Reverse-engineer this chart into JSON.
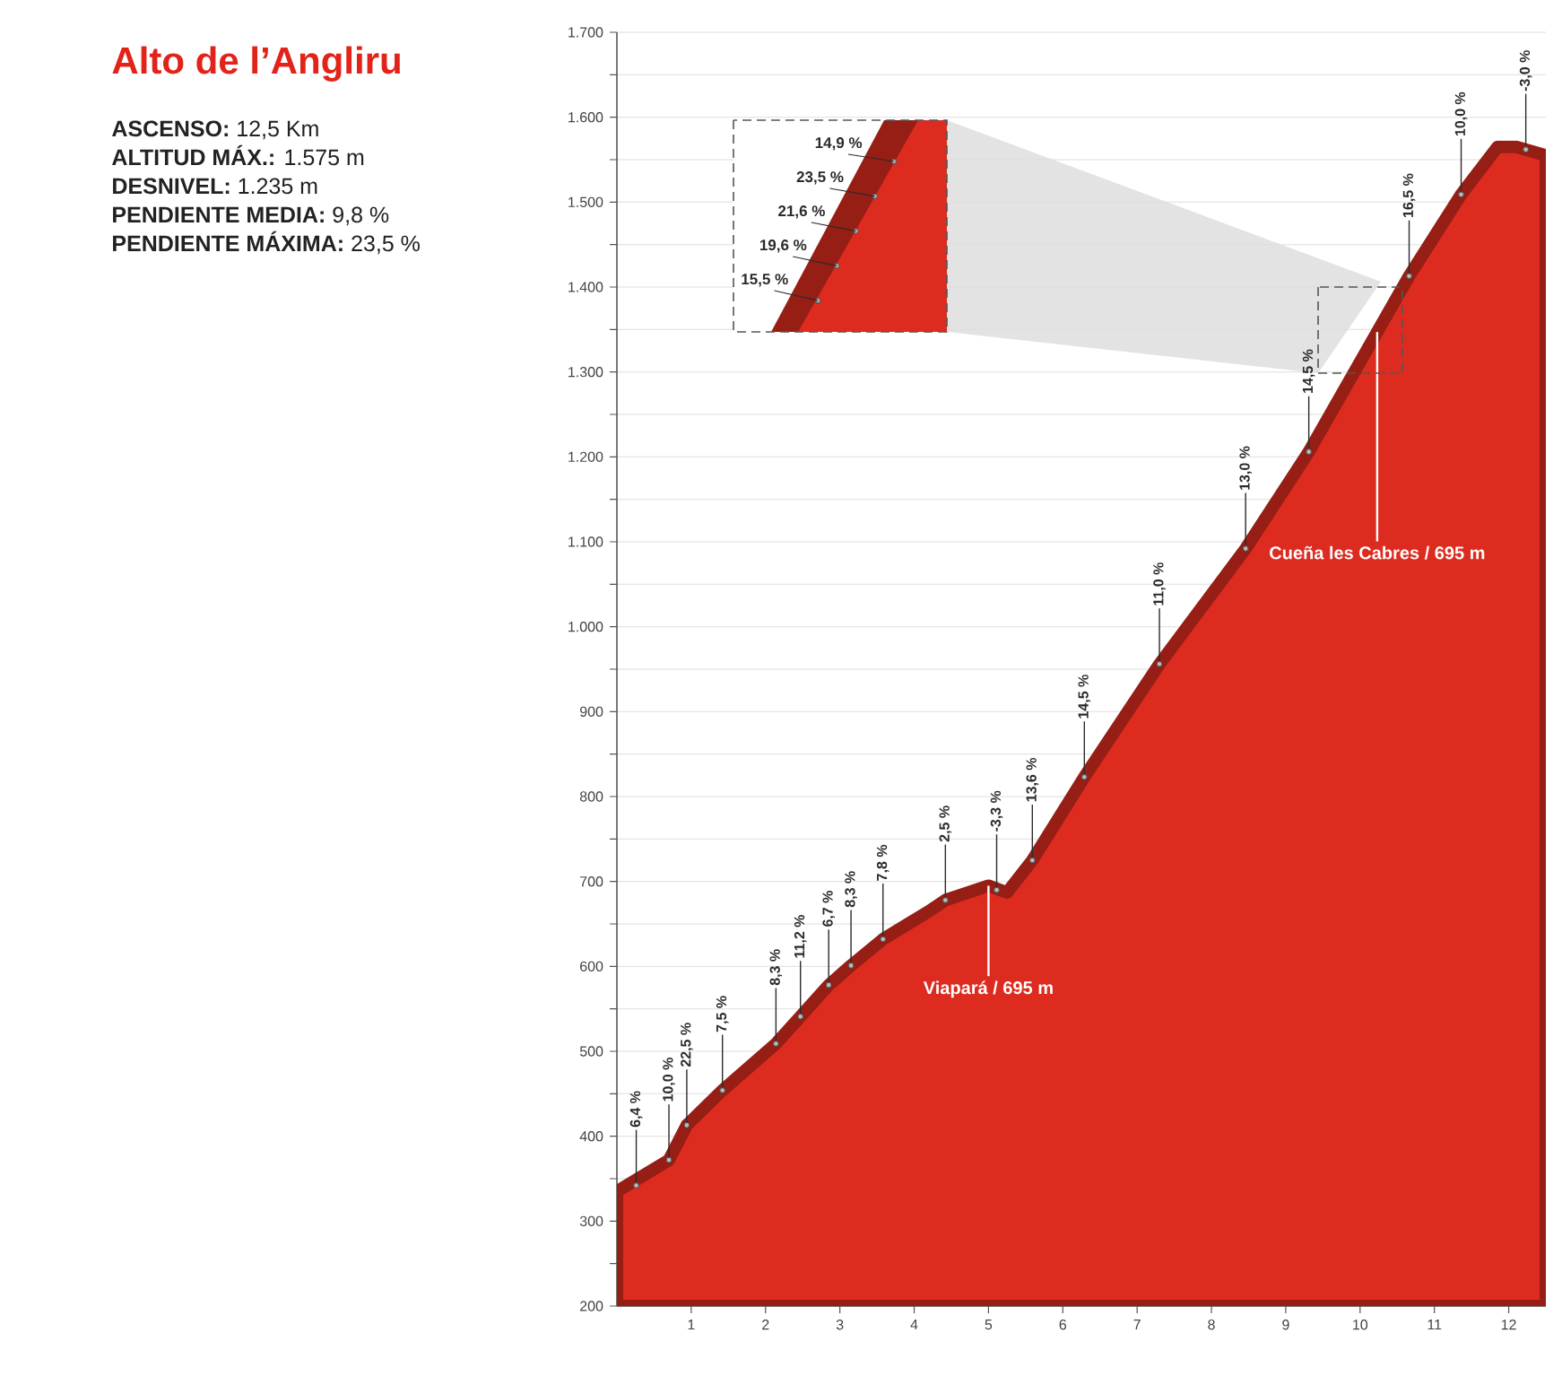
{
  "chart_data": {
    "type": "area",
    "title": "Alto de l’Angliru",
    "x": [
      0,
      0.7,
      0.94,
      1.42,
      2.14,
      2.47,
      2.85,
      3.15,
      3.58,
      4.2,
      4.42,
      5.0,
      5.25,
      5.59,
      6.29,
      7.3,
      8.46,
      9.31,
      10.66,
      11.36,
      11.85,
      12.1,
      12.5
    ],
    "series": [
      {
        "color": "#dd2c1f",
        "values": [
          335,
          372,
          413,
          454,
          509,
          541,
          578,
          601,
          632,
          665,
          678,
          695,
          687,
          725,
          823,
          956,
          1092,
          1206,
          1413,
          1509,
          1565,
          1565,
          1555
        ]
      }
    ],
    "xlim": [
      0,
      12.5
    ],
    "xticks": [
      1,
      2,
      3,
      4,
      5,
      6,
      7,
      8,
      9,
      10,
      11,
      12
    ],
    "ylim": [
      200,
      1700
    ],
    "yticks": [
      200,
      {
        "value": 250,
        "label": null
      },
      300,
      {
        "value": 350,
        "label": null
      },
      400,
      {
        "value": 450,
        "label": null
      },
      500,
      {
        "value": 550,
        "label": null
      },
      600,
      {
        "value": 650,
        "label": null
      },
      700,
      {
        "value": 750,
        "label": null
      },
      800,
      {
        "value": 850,
        "label": null
      },
      900,
      {
        "value": 950,
        "label": null
      },
      {
        "value": 1000,
        "label": "1.000"
      },
      {
        "value": 1050,
        "label": null
      },
      {
        "value": 1100,
        "label": "1.100"
      },
      {
        "value": 1150,
        "label": null
      },
      {
        "value": 1200,
        "label": "1.200"
      },
      {
        "value": 1250,
        "label": null
      },
      {
        "value": 1300,
        "label": "1.300"
      },
      {
        "value": 1350,
        "label": null
      },
      {
        "value": 1400,
        "label": "1.400"
      },
      {
        "value": 1450,
        "label": null
      },
      {
        "value": 1500,
        "label": "1.500"
      },
      {
        "value": 1550,
        "label": null
      },
      {
        "value": 1600,
        "label": "1.600"
      },
      {
        "value": 1650,
        "label": null
      },
      {
        "value": 1700,
        "label": "1.700"
      }
    ],
    "grid": "y",
    "annotations": [
      "**ASCENSO:** 12,5 Km",
      "**ALTITUD MÁX.:** 1.575 m",
      "**DESNIVEL:** 1.235 m",
      "**PENDIENTE MEDIA:** 9,8 %",
      "**PENDIENTE MÁXIMA:** 23,5 %",
      {
        "text": "6,4 %",
        "x": 0.26,
        "y": 342
      },
      {
        "text": "10,0 %",
        "x": 0.7,
        "y": 372
      },
      {
        "text": "22,5 %",
        "x": 0.94,
        "y": 413
      },
      {
        "text": "7,5 %",
        "x": 1.42,
        "y": 454
      },
      {
        "text": "8,3 %",
        "x": 2.14,
        "y": 509
      },
      {
        "text": "11,2 %",
        "x": 2.47,
        "y": 541
      },
      {
        "text": "6,7 %",
        "x": 2.85,
        "y": 578
      },
      {
        "text": "8,3 %",
        "x": 3.15,
        "y": 601
      },
      {
        "text": "7,8 %",
        "x": 3.58,
        "y": 632
      },
      {
        "text": "2,5 %",
        "x": 4.42,
        "y": 678
      },
      {
        "text": "-3,3 %",
        "x": 5.11,
        "y": 690
      },
      {
        "text": "13,6 %",
        "x": 5.59,
        "y": 725
      },
      {
        "text": "14,5 %",
        "x": 6.29,
        "y": 823
      },
      {
        "text": "11,0 %",
        "x": 7.3,
        "y": 956
      },
      {
        "text": "13,0 %",
        "x": 8.46,
        "y": 1092
      },
      {
        "text": "14,5 %",
        "x": 9.31,
        "y": 1206
      },
      {
        "text": "16,5 %",
        "x": 10.66,
        "y": 1413
      },
      {
        "text": "10,0 %",
        "x": 11.36,
        "y": 1509
      },
      {
        "text": "-3,0 %",
        "x": 12.23,
        "y": 1562
      },
      "14,9 %",
      "23,5 %",
      "21,6 %",
      "19,6 %",
      "15,5 %",
      {
        "text": "Viapará / 695 m",
        "x": 5.0,
        "y": 695
      },
      {
        "text": "Cueña les Cabres / 695 m",
        "x": 10.23,
        "y": 1347
      }
    ]
  }
}
